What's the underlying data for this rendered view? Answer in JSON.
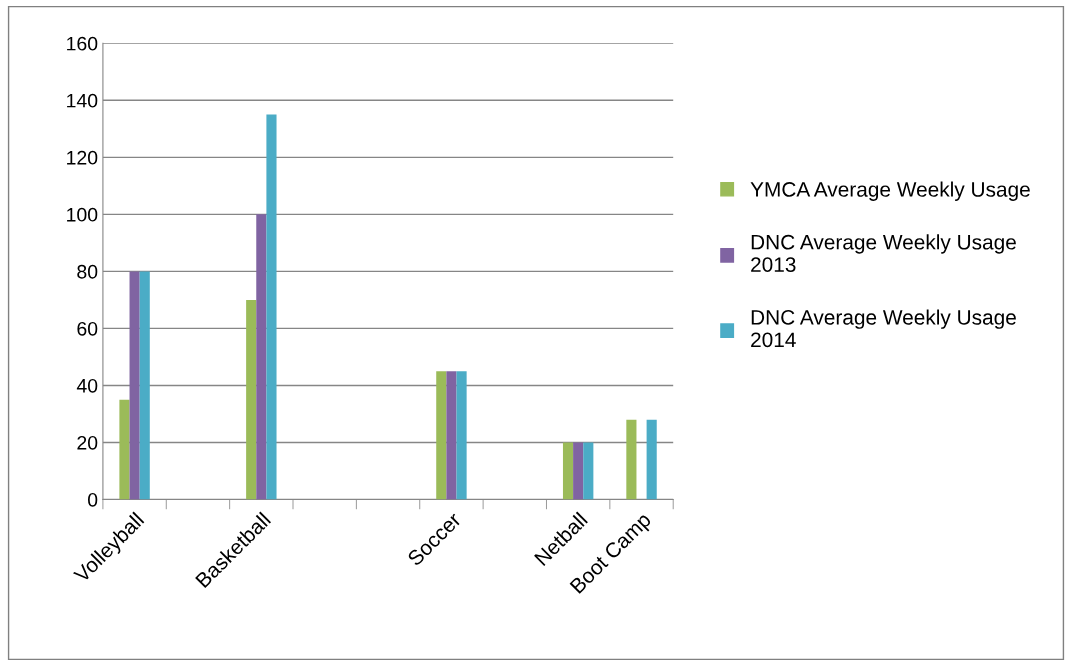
{
  "chart_data": {
    "type": "bar",
    "categories": [
      "Volleyball",
      null,
      "Basketball",
      null,
      null,
      "Soccer",
      null,
      "Netball",
      "Boot Camp"
    ],
    "series": [
      {
        "name": "YMCA Average Weekly Usage",
        "color": "#9bbb59",
        "values": [
          35,
          null,
          70,
          null,
          null,
          45,
          null,
          20,
          28
        ]
      },
      {
        "name": "DNC Average Weekly Usage 2013",
        "color": "#8064a2",
        "values": [
          80,
          null,
          100,
          null,
          null,
          45,
          null,
          20,
          null
        ]
      },
      {
        "name": "DNC Average Weekly Usage 2014",
        "color": "#4bacc6",
        "values": [
          80,
          null,
          135,
          null,
          null,
          45,
          null,
          20,
          28
        ]
      }
    ],
    "ylim": [
      0,
      160
    ],
    "yticks": [
      0,
      20,
      40,
      60,
      80,
      100,
      120,
      140,
      160
    ],
    "grid": "y",
    "legend": "right"
  }
}
